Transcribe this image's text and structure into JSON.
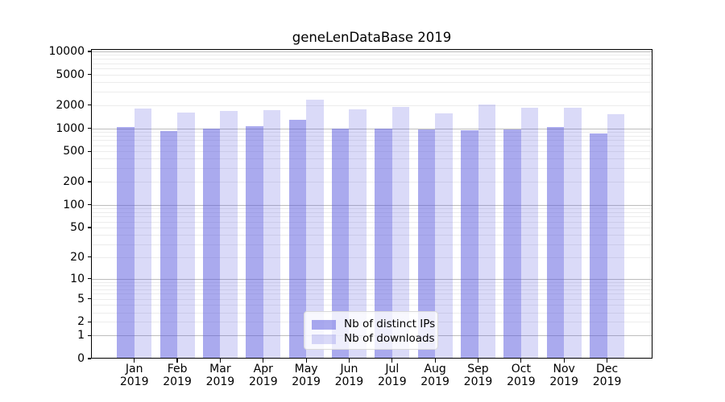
{
  "figure": {
    "title": "geneLenDataBase 2019"
  },
  "chart_data": {
    "type": "bar",
    "title": "geneLenDataBase 2019",
    "categories": [
      "Jan",
      "Feb",
      "Mar",
      "Apr",
      "May",
      "Jun",
      "Jul",
      "Aug",
      "Sep",
      "Oct",
      "Nov",
      "Dec"
    ],
    "category_year": "2019",
    "series": [
      {
        "name": "Nb of distinct IPs",
        "color": "rgba(85,85,221,0.5)",
        "values": [
          1040,
          930,
          990,
          1060,
          1290,
          1000,
          1000,
          955,
          950,
          960,
          1040,
          865
        ]
      },
      {
        "name": "Nb of downloads",
        "color": "rgba(85,85,221,0.22)",
        "values": [
          1810,
          1620,
          1690,
          1740,
          2350,
          1750,
          1900,
          1550,
          2020,
          1830,
          1860,
          1520
        ]
      }
    ],
    "xlabel": "",
    "ylabel": "",
    "yscale": "log1p",
    "ylim": [
      0,
      10880
    ],
    "yticks": [
      0,
      1,
      2,
      5,
      10,
      20,
      50,
      100,
      200,
      500,
      1000,
      2000,
      5000,
      10000
    ],
    "grid": {
      "major_lines": [
        1,
        10,
        100,
        1000,
        10000
      ],
      "major_color": "#bdbdbd",
      "minor_color": "#ececec"
    },
    "legend_position": "lower center"
  }
}
